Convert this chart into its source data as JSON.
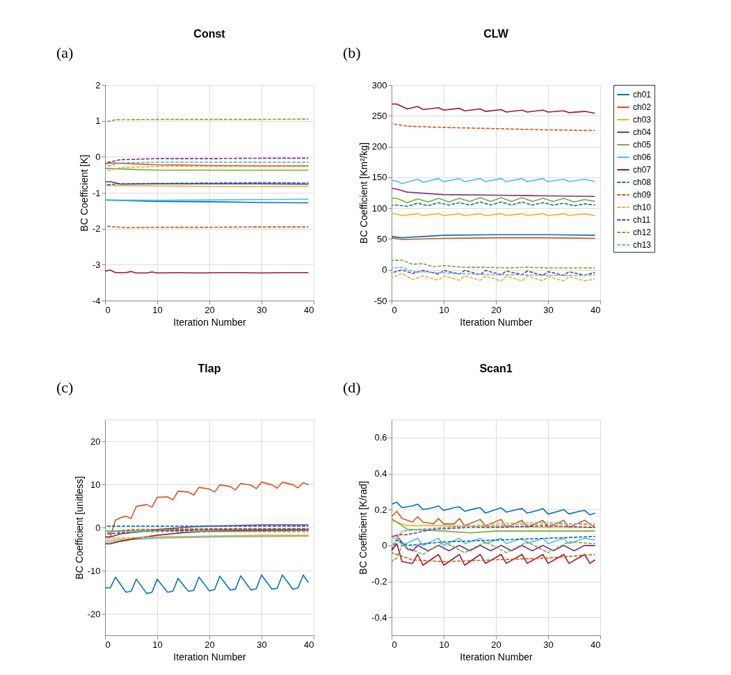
{
  "chart_data": [
    {
      "type": "line",
      "title": "Const",
      "annotations": [
        "(a)"
      ],
      "xlabel": "Iteration Number",
      "ylabel": "BC Coefficient  [K]",
      "xlim": [
        0,
        40
      ],
      "xticks": [
        0,
        10,
        20,
        30,
        40
      ],
      "ylim": [
        -4,
        2
      ],
      "yticks": [
        -4,
        -3,
        -2,
        -1,
        0,
        1,
        2
      ],
      "grid": true,
      "marker": "none",
      "legend": "right",
      "series": [
        {
          "name": "ch01",
          "color": "#0072bd",
          "line_style": "solid",
          "x": [
            0,
            10,
            20,
            30,
            39
          ],
          "values": [
            -1.2,
            -1.24,
            -1.25,
            -1.27,
            -1.28
          ]
        },
        {
          "name": "ch02",
          "color": "#d95319",
          "line_style": "solid",
          "x": [
            0,
            1,
            10,
            20,
            30,
            39
          ],
          "values": [
            -0.2,
            -0.17,
            -0.22,
            -0.24,
            -0.25,
            -0.25
          ]
        },
        {
          "name": "ch03",
          "color": "#edb120",
          "line_style": "solid",
          "x": [
            0,
            10,
            20,
            30,
            39
          ],
          "values": [
            -0.8,
            -0.81,
            -0.82,
            -0.82,
            -0.82
          ]
        },
        {
          "name": "ch04",
          "color": "#7e2f8e",
          "line_style": "solid",
          "x": [
            0,
            1,
            3,
            10,
            20,
            30,
            39
          ],
          "values": [
            -0.7,
            -0.69,
            -0.76,
            -0.75,
            -0.75,
            -0.75,
            -0.76
          ]
        },
        {
          "name": "ch05",
          "color": "#77ac30",
          "line_style": "solid",
          "x": [
            0,
            5,
            10,
            20,
            30,
            39
          ],
          "values": [
            -0.32,
            -0.35,
            -0.37,
            -0.37,
            -0.37,
            -0.37
          ]
        },
        {
          "name": "ch06",
          "color": "#4dbeee",
          "line_style": "solid",
          "x": [
            0,
            10,
            20,
            30,
            39
          ],
          "values": [
            -1.2,
            -1.21,
            -1.2,
            -1.19,
            -1.18
          ]
        },
        {
          "name": "ch07",
          "color": "#a2142f",
          "line_style": "solid",
          "x": [
            0,
            1,
            2,
            4,
            5,
            6,
            8,
            9,
            10,
            14,
            18,
            22,
            26,
            30,
            34,
            39
          ],
          "values": [
            -3.18,
            -3.15,
            -3.22,
            -3.22,
            -3.19,
            -3.23,
            -3.23,
            -3.2,
            -3.23,
            -3.22,
            -3.23,
            -3.22,
            -3.22,
            -3.23,
            -3.22,
            -3.22
          ]
        },
        {
          "name": "ch08",
          "color": "#0072bd",
          "line_style": "dashed",
          "x": [
            0,
            3,
            10,
            20,
            30,
            39
          ],
          "values": [
            -0.78,
            -0.75,
            -0.74,
            -0.73,
            -0.72,
            -0.73
          ]
        },
        {
          "name": "ch09",
          "color": "#d95319",
          "line_style": "dashed",
          "x": [
            0,
            4,
            10,
            20,
            30,
            39
          ],
          "values": [
            -1.93,
            -1.97,
            -1.96,
            -1.96,
            -1.95,
            -1.95
          ]
        },
        {
          "name": "ch10",
          "color": "#edb120",
          "line_style": "dashed",
          "x": [
            0,
            3,
            10,
            20,
            30,
            39
          ],
          "values": [
            -0.4,
            -0.3,
            -0.27,
            -0.27,
            -0.27,
            -0.27
          ]
        },
        {
          "name": "ch11",
          "color": "#7e2f8e",
          "line_style": "dashed",
          "x": [
            0,
            3,
            10,
            20,
            30,
            39
          ],
          "values": [
            -0.17,
            -0.08,
            -0.05,
            -0.05,
            -0.04,
            -0.04
          ]
        },
        {
          "name": "ch12",
          "color": "#77ac30",
          "line_style": "dashed",
          "x": [
            0,
            2,
            10,
            20,
            30,
            39
          ],
          "values": [
            0.97,
            1.03,
            1.04,
            1.04,
            1.04,
            1.05
          ]
        },
        {
          "name": "ch13",
          "color": "#4dbeee",
          "line_style": "dashed",
          "x": [
            0,
            3,
            10,
            20,
            30,
            39
          ],
          "values": [
            -0.28,
            -0.17,
            -0.15,
            -0.15,
            -0.15,
            -0.15
          ]
        }
      ]
    },
    {
      "type": "line",
      "title": "CLW",
      "annotations": [
        "(b)"
      ],
      "xlabel": "Iteration Number",
      "ylabel": "BC Coefficient  [Km²/kg]",
      "xlim": [
        0,
        40
      ],
      "xticks": [
        0,
        10,
        20,
        30,
        40
      ],
      "ylim": [
        -50,
        300
      ],
      "yticks": [
        -50,
        0,
        50,
        100,
        150,
        200,
        250,
        300
      ],
      "grid": true,
      "marker": "none",
      "legend": "right",
      "series": [
        {
          "name": "ch01",
          "color": "#0072bd",
          "line_style": "solid",
          "x": [
            0,
            2,
            10,
            20,
            30,
            39
          ],
          "values": [
            54,
            52,
            56,
            57,
            57,
            56
          ]
        },
        {
          "name": "ch02",
          "color": "#d95319",
          "line_style": "solid",
          "x": [
            0,
            2,
            10,
            20,
            30,
            39
          ],
          "values": [
            52,
            49,
            51,
            52,
            52,
            51
          ]
        },
        {
          "name": "ch03",
          "color": "#edb120",
          "line_style": "solid",
          "x": [
            0,
            2,
            5,
            6,
            9,
            10,
            13,
            14,
            17,
            18,
            21,
            22,
            25,
            26,
            29,
            30,
            33,
            34,
            37,
            39
          ],
          "values": [
            92,
            88,
            91,
            88,
            91,
            88,
            91,
            88,
            91,
            88,
            91,
            88,
            91,
            88,
            91,
            88,
            91,
            88,
            91,
            88
          ]
        },
        {
          "name": "ch04",
          "color": "#7e2f8e",
          "line_style": "solid",
          "x": [
            0,
            1,
            3,
            10,
            20,
            30,
            39
          ],
          "values": [
            132,
            131,
            126,
            122,
            121,
            120,
            119
          ]
        },
        {
          "name": "ch05",
          "color": "#77ac30",
          "line_style": "solid",
          "x": [
            0,
            1,
            3,
            5,
            7,
            9,
            11,
            13,
            15,
            17,
            19,
            21,
            23,
            25,
            27,
            29,
            31,
            33,
            35,
            37,
            39
          ],
          "values": [
            116,
            116,
            109,
            115,
            110,
            116,
            110,
            116,
            111,
            117,
            111,
            117,
            111,
            117,
            111,
            116,
            111,
            116,
            110,
            114,
            111
          ]
        },
        {
          "name": "ch06",
          "color": "#4dbeee",
          "line_style": "solid",
          "x": [
            0,
            1,
            2,
            5,
            6,
            9,
            10,
            13,
            14,
            17,
            18,
            21,
            22,
            25,
            26,
            29,
            30,
            33,
            34,
            37,
            39
          ],
          "values": [
            145,
            144,
            140,
            147,
            142,
            148,
            143,
            148,
            143,
            148,
            143,
            148,
            143,
            148,
            143,
            148,
            143,
            147,
            143,
            147,
            143
          ]
        },
        {
          "name": "ch07",
          "color": "#a2142f",
          "line_style": "solid",
          "x": [
            0,
            1,
            3,
            5,
            6,
            9,
            10,
            13,
            14,
            17,
            18,
            21,
            22,
            25,
            26,
            29,
            30,
            33,
            34,
            37,
            39
          ],
          "values": [
            269,
            269,
            261,
            265,
            260,
            263,
            259,
            262,
            258,
            261,
            257,
            260,
            256,
            259,
            256,
            259,
            256,
            258,
            255,
            257,
            254
          ]
        },
        {
          "name": "ch08",
          "color": "#0072bd",
          "line_style": "dashed",
          "x": [
            0,
            1,
            3,
            5,
            7,
            9,
            11,
            13,
            15,
            17,
            19,
            21,
            23,
            25,
            27,
            29,
            31,
            33,
            35,
            37,
            39
          ],
          "values": [
            105,
            105,
            103,
            108,
            104,
            109,
            105,
            109,
            105,
            110,
            105,
            110,
            105,
            110,
            105,
            109,
            105,
            108,
            104,
            107,
            105
          ]
        },
        {
          "name": "ch09",
          "color": "#d95319",
          "line_style": "dashed",
          "x": [
            0,
            3,
            10,
            20,
            30,
            39
          ],
          "values": [
            237,
            233,
            231,
            229,
            227,
            226
          ]
        },
        {
          "name": "ch10",
          "color": "#edb120",
          "line_style": "dashed",
          "x": [
            0,
            2,
            4,
            6,
            9,
            10,
            13,
            14,
            17,
            18,
            21,
            22,
            25,
            26,
            29,
            30,
            33,
            34,
            37,
            39
          ],
          "values": [
            -13,
            -6,
            -16,
            -10,
            -17,
            -10,
            -17,
            -10,
            -17,
            -10,
            -18,
            -10,
            -18,
            -10,
            -18,
            -11,
            -18,
            -11,
            -18,
            -15
          ]
        },
        {
          "name": "ch11",
          "color": "#7e2f8e",
          "line_style": "dashed",
          "x": [
            0,
            2,
            4,
            6,
            9,
            10,
            13,
            14,
            17,
            18,
            21,
            22,
            25,
            26,
            29,
            30,
            33,
            34,
            37,
            39
          ],
          "values": [
            -5,
            0,
            -6,
            -1,
            -7,
            -1,
            -7,
            -1,
            -8,
            -1,
            -8,
            -2,
            -8,
            -2,
            -9,
            -3,
            -9,
            -3,
            -9,
            -4
          ]
        },
        {
          "name": "ch12",
          "color": "#77ac30",
          "line_style": "dashed",
          "x": [
            0,
            2,
            4,
            6,
            8,
            10,
            14,
            18,
            22,
            26,
            30,
            34,
            39
          ],
          "values": [
            15,
            16,
            9,
            10,
            5,
            7,
            4,
            4,
            3,
            4,
            3,
            3,
            3
          ]
        },
        {
          "name": "ch13",
          "color": "#4dbeee",
          "line_style": "dashed",
          "x": [
            0,
            2,
            4,
            8,
            12,
            16,
            20,
            24,
            28,
            32,
            36,
            39
          ],
          "values": [
            3,
            4,
            -3,
            -4,
            -6,
            -7,
            -8,
            -8,
            -9,
            -9,
            -9,
            -8
          ]
        }
      ]
    },
    {
      "type": "line",
      "title": "Tlap",
      "annotations": [
        "(c)"
      ],
      "xlabel": "Iteration Number",
      "ylabel": "BC Coefficient  [unitless]",
      "xlim": [
        0,
        40
      ],
      "xticks": [
        0,
        10,
        20,
        30,
        40
      ],
      "ylim": [
        -25,
        25
      ],
      "yticks": [
        -20,
        -10,
        0,
        10,
        20
      ],
      "grid": true,
      "marker": "none",
      "legend": "right",
      "series": [
        {
          "name": "ch01",
          "color": "#0072bd",
          "line_style": "solid",
          "x": [
            0,
            1,
            2,
            4,
            5,
            6,
            8,
            9,
            10,
            12,
            13,
            14,
            16,
            17,
            18,
            20,
            21,
            22,
            24,
            25,
            26,
            28,
            29,
            30,
            32,
            33,
            34,
            36,
            37,
            38,
            39
          ],
          "values": [
            -14,
            -14,
            -11.5,
            -15,
            -14.8,
            -12,
            -15.3,
            -15,
            -12,
            -15,
            -14.8,
            -11.8,
            -14.8,
            -14.6,
            -11.5,
            -14.7,
            -14.4,
            -11.3,
            -14.5,
            -14.3,
            -11.2,
            -14.5,
            -14.2,
            -11,
            -14.3,
            -14.1,
            -11,
            -14.3,
            -14,
            -11,
            -12.8
          ]
        },
        {
          "name": "ch02",
          "color": "#d95319",
          "line_style": "solid",
          "x": [
            0,
            1,
            2,
            3,
            4,
            5,
            6,
            8,
            9,
            10,
            12,
            13,
            14,
            16,
            17,
            18,
            20,
            21,
            22,
            24,
            25,
            26,
            28,
            29,
            30,
            32,
            33,
            34,
            36,
            37,
            38,
            39
          ],
          "values": [
            -2.2,
            -2.2,
            1.7,
            2.3,
            2.6,
            2.1,
            4.9,
            5.3,
            4.7,
            7,
            7.1,
            6.4,
            8.4,
            8.2,
            7.5,
            9.3,
            8.9,
            8.2,
            9.9,
            9.5,
            8.7,
            10.2,
            9.8,
            9,
            10.5,
            9.9,
            9.1,
            10.5,
            9.9,
            9.2,
            10.4,
            9.9
          ]
        },
        {
          "name": "ch03",
          "color": "#edb120",
          "line_style": "solid",
          "x": [
            0,
            5,
            10,
            20,
            30,
            39
          ],
          "values": [
            -3,
            -2.6,
            -2.2,
            -2,
            -1.8,
            -1.8
          ]
        },
        {
          "name": "ch04",
          "color": "#7e2f8e",
          "line_style": "solid",
          "x": [
            0,
            1,
            3,
            10,
            17,
            20,
            30,
            39
          ],
          "values": [
            -2.2,
            -2.2,
            -1.5,
            -0.5,
            0.2,
            0.3,
            0.6,
            0.6
          ]
        },
        {
          "name": "ch05",
          "color": "#77ac30",
          "line_style": "solid",
          "x": [
            0,
            10,
            20,
            30,
            39
          ],
          "values": [
            -0.8,
            -0.7,
            -0.5,
            -0.5,
            -0.5
          ]
        },
        {
          "name": "ch06",
          "color": "#4dbeee",
          "line_style": "solid",
          "x": [
            0,
            5,
            10,
            20,
            30,
            39
          ],
          "values": [
            -3.5,
            -2.8,
            -2.5,
            -2.2,
            -2.1,
            -2
          ]
        },
        {
          "name": "ch07",
          "color": "#a2142f",
          "line_style": "solid",
          "x": [
            0,
            1,
            3,
            6,
            10,
            15,
            20,
            30,
            39
          ],
          "values": [
            -3.8,
            -3.8,
            -3.2,
            -2.5,
            -1.8,
            -1.2,
            -0.9,
            -0.7,
            -0.6
          ]
        },
        {
          "name": "ch08",
          "color": "#0072bd",
          "line_style": "dashed",
          "x": [
            0,
            20,
            39
          ],
          "values": [
            0.3,
            0.3,
            0.3
          ]
        },
        {
          "name": "ch09",
          "color": "#d95319",
          "line_style": "dashed",
          "x": [
            0,
            5,
            20,
            39
          ],
          "values": [
            -1.2,
            -0.5,
            -0.3,
            -0.3
          ]
        },
        {
          "name": "ch10",
          "color": "#edb120",
          "line_style": "dashed",
          "x": [
            0,
            10,
            20,
            39
          ],
          "values": [
            -2.5,
            -2.2,
            -2,
            -2
          ]
        },
        {
          "name": "ch11",
          "color": "#7e2f8e",
          "line_style": "dashed",
          "x": [
            0,
            10,
            20,
            39
          ],
          "values": [
            -1.5,
            -0.8,
            -0.6,
            -0.5
          ]
        },
        {
          "name": "ch12",
          "color": "#77ac30",
          "line_style": "dashed",
          "x": [
            0,
            20,
            39
          ],
          "values": [
            -1,
            -0.9,
            -0.8
          ]
        },
        {
          "name": "ch13",
          "color": "#4dbeee",
          "line_style": "dashed",
          "x": [
            0,
            20,
            39
          ],
          "values": [
            -1,
            -1,
            -1
          ]
        }
      ]
    },
    {
      "type": "line",
      "title": "Scan1",
      "annotations": [
        "(d)"
      ],
      "xlabel": "Iteration Number",
      "ylabel": "BC Coefficient  [K/rad]",
      "xlim": [
        0,
        40
      ],
      "xticks": [
        0,
        10,
        20,
        30,
        40
      ],
      "ylim": [
        -0.5,
        0.7
      ],
      "yticks": [
        -0.4,
        -0.2,
        0,
        0.2,
        0.4,
        0.6
      ],
      "grid": true,
      "marker": "none",
      "legend": "right",
      "series": [
        {
          "name": "ch01",
          "color": "#0072bd",
          "line_style": "solid",
          "x": [
            0,
            1,
            2,
            4,
            5,
            6,
            8,
            9,
            10,
            12,
            13,
            14,
            16,
            17,
            18,
            20,
            21,
            22,
            24,
            25,
            26,
            28,
            29,
            30,
            32,
            33,
            34,
            36,
            37,
            38,
            39
          ],
          "values": [
            0.23,
            0.24,
            0.21,
            0.22,
            0.23,
            0.2,
            0.21,
            0.22,
            0.195,
            0.21,
            0.215,
            0.19,
            0.205,
            0.21,
            0.18,
            0.2,
            0.21,
            0.185,
            0.2,
            0.205,
            0.18,
            0.195,
            0.205,
            0.175,
            0.19,
            0.2,
            0.175,
            0.19,
            0.195,
            0.17,
            0.18
          ]
        },
        {
          "name": "ch02",
          "color": "#d95319",
          "line_style": "solid",
          "x": [
            0,
            1,
            2,
            4,
            5,
            6,
            8,
            9,
            10,
            12,
            13,
            14,
            17,
            18,
            21,
            22,
            25,
            26,
            29,
            30,
            33,
            34,
            37,
            39
          ],
          "values": [
            0.16,
            0.19,
            0.15,
            0.13,
            0.16,
            0.13,
            0.12,
            0.15,
            0.12,
            0.12,
            0.15,
            0.11,
            0.145,
            0.11,
            0.145,
            0.1,
            0.14,
            0.1,
            0.14,
            0.1,
            0.14,
            0.1,
            0.14,
            0.1
          ]
        },
        {
          "name": "ch03",
          "color": "#edb120",
          "line_style": "solid",
          "x": [
            0,
            3,
            10,
            20,
            30,
            39
          ],
          "values": [
            0.14,
            0.11,
            0.11,
            0.105,
            0.1,
            0.1
          ]
        },
        {
          "name": "ch04",
          "color": "#7e2f8e",
          "line_style": "solid",
          "x": [
            0,
            1,
            3,
            4,
            5,
            7,
            9,
            11,
            13,
            15,
            17,
            19,
            21,
            23,
            25,
            27,
            29,
            31,
            33,
            35,
            37,
            39
          ],
          "values": [
            0.05,
            0.055,
            -0.02,
            -0.03,
            0,
            -0.03,
            0,
            -0.03,
            0,
            -0.03,
            0,
            -0.03,
            0,
            -0.03,
            0,
            -0.03,
            0,
            -0.03,
            0,
            -0.03,
            0,
            0
          ]
        },
        {
          "name": "ch05",
          "color": "#77ac30",
          "line_style": "solid",
          "x": [
            0,
            3,
            10,
            15,
            20,
            30,
            39
          ],
          "values": [
            0.15,
            0.09,
            0.08,
            0.07,
            0.08,
            0.08,
            0.08
          ]
        },
        {
          "name": "ch06",
          "color": "#4dbeee",
          "line_style": "solid",
          "x": [
            0,
            1,
            2,
            5,
            6,
            9,
            10,
            13,
            14,
            17,
            18,
            21,
            22,
            25,
            26,
            29,
            30,
            33,
            34,
            37,
            39
          ],
          "values": [
            0.04,
            0.04,
            0,
            0.04,
            0,
            0.04,
            0,
            0.04,
            0.01,
            0.04,
            0.01,
            0.04,
            0.01,
            0.04,
            0.01,
            0.04,
            0.01,
            0.04,
            0.01,
            0.04,
            0.03
          ]
        },
        {
          "name": "ch07",
          "color": "#a2142f",
          "line_style": "solid",
          "x": [
            0,
            1,
            2,
            4,
            5,
            6,
            9,
            10,
            13,
            14,
            17,
            18,
            21,
            22,
            25,
            26,
            29,
            30,
            33,
            34,
            37,
            38,
            39
          ],
          "values": [
            -0.03,
            0.01,
            -0.09,
            -0.1,
            -0.05,
            -0.11,
            -0.05,
            -0.11,
            -0.05,
            -0.11,
            -0.05,
            -0.1,
            -0.05,
            -0.1,
            -0.05,
            -0.1,
            -0.05,
            -0.1,
            -0.05,
            -0.1,
            -0.05,
            -0.1,
            -0.08
          ]
        },
        {
          "name": "ch08",
          "color": "#0072bd",
          "line_style": "dashed",
          "x": [
            0,
            1,
            3,
            10,
            20,
            30,
            39
          ],
          "values": [
            -0.02,
            0.03,
            0,
            0.02,
            0.03,
            0.04,
            0.05
          ]
        },
        {
          "name": "ch09",
          "color": "#d95319",
          "line_style": "dashed",
          "x": [
            0,
            4,
            10,
            20,
            30,
            39
          ],
          "values": [
            -0.04,
            -0.08,
            -0.09,
            -0.08,
            -0.07,
            -0.05
          ]
        },
        {
          "name": "ch10",
          "color": "#edb120",
          "line_style": "dashed",
          "x": [
            0,
            2,
            5,
            10,
            20,
            30,
            39
          ],
          "values": [
            0,
            0.08,
            0.09,
            0.1,
            0.12,
            0.13,
            0.11
          ]
        },
        {
          "name": "ch11",
          "color": "#7e2f8e",
          "line_style": "dashed",
          "x": [
            1,
            3,
            8,
            15,
            20,
            30,
            39
          ],
          "values": [
            0.06,
            0.06,
            0.09,
            0.1,
            0.1,
            0.11,
            0.1
          ]
        },
        {
          "name": "ch12",
          "color": "#77ac30",
          "line_style": "dashed",
          "x": [
            0,
            1,
            2,
            6,
            10,
            14,
            18,
            22,
            26,
            30,
            34,
            39
          ],
          "values": [
            -0.09,
            -0.07,
            0,
            -0.05,
            0.02,
            -0.04,
            0.02,
            -0.04,
            0.02,
            -0.04,
            0.02,
            0.01
          ]
        },
        {
          "name": "ch13",
          "color": "#4dbeee",
          "line_style": "dashed",
          "x": [
            2,
            10,
            20,
            30,
            39
          ],
          "values": [
            0.08,
            0.1,
            0.11,
            0.12,
            0.12
          ]
        }
      ]
    }
  ]
}
